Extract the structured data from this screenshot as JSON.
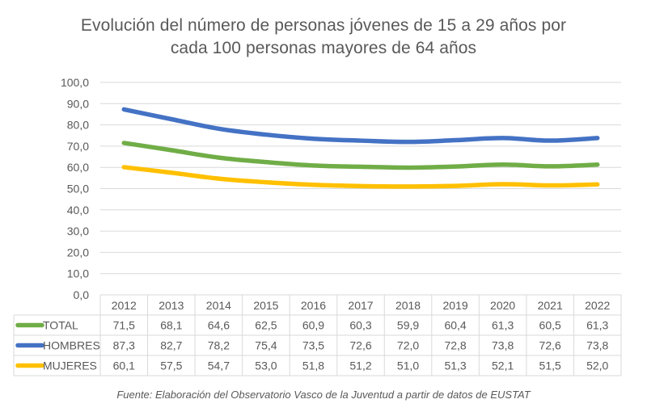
{
  "chart_data": {
    "type": "line",
    "title_lines": [
      "Evolución del número de personas jóvenes de 15 a 29 años por",
      "cada 100 personas mayores de 64 años"
    ],
    "xlabel": "",
    "ylabel": "",
    "ylim": [
      0,
      100
    ],
    "yticks": [
      0,
      10,
      20,
      30,
      40,
      50,
      60,
      70,
      80,
      90,
      100
    ],
    "ytick_labels": [
      "0,0",
      "10,0",
      "20,0",
      "30,0",
      "40,0",
      "50,0",
      "60,0",
      "70,0",
      "80,0",
      "90,0",
      "100,0"
    ],
    "grid": true,
    "legend": "data-table-below",
    "categories": [
      "2012",
      "2013",
      "2014",
      "2015",
      "2016",
      "2017",
      "2018",
      "2019",
      "2020",
      "2021",
      "2022"
    ],
    "series": [
      {
        "name": "TOTAL",
        "color": "#70ad47",
        "values": [
          71.5,
          68.1,
          64.6,
          62.5,
          60.9,
          60.3,
          59.9,
          60.4,
          61.3,
          60.5,
          61.3
        ],
        "labels": [
          "71,5",
          "68,1",
          "64,6",
          "62,5",
          "60,9",
          "60,3",
          "59,9",
          "60,4",
          "61,3",
          "60,5",
          "61,3"
        ]
      },
      {
        "name": "HOMBRES",
        "color": "#4472c4",
        "values": [
          87.3,
          82.7,
          78.2,
          75.4,
          73.5,
          72.6,
          72.0,
          72.8,
          73.8,
          72.6,
          73.8
        ],
        "labels": [
          "87,3",
          "82,7",
          "78,2",
          "75,4",
          "73,5",
          "72,6",
          "72,0",
          "72,8",
          "73,8",
          "72,6",
          "73,8"
        ]
      },
      {
        "name": "MUJERES",
        "color": "#ffc000",
        "values": [
          60.1,
          57.5,
          54.7,
          53.0,
          51.8,
          51.2,
          51.0,
          51.3,
          52.1,
          51.5,
          52.0
        ],
        "labels": [
          "60,1",
          "57,5",
          "54,7",
          "53,0",
          "51,8",
          "51,2",
          "51,0",
          "51,3",
          "52,1",
          "51,5",
          "52,0"
        ]
      }
    ],
    "source": "Fuente: Elaboración del Observatorio Vasco de la Juventud a partir de datos de EUSTAT"
  }
}
